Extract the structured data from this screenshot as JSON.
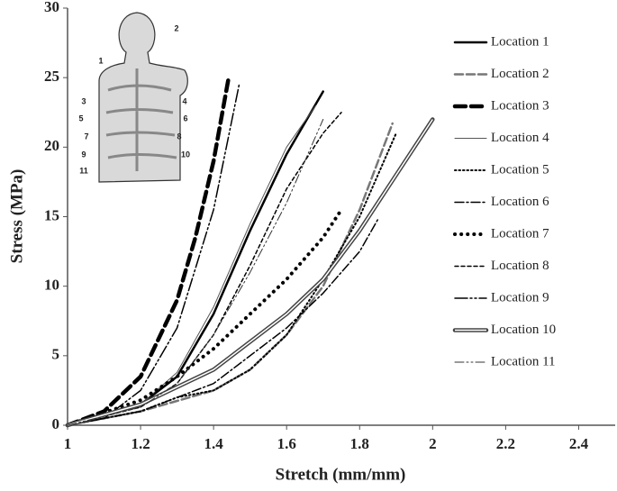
{
  "chart_data": {
    "type": "line",
    "x_label": "Stretch (mm/mm)",
    "y_label": "Stress (MPa)",
    "xlim": [
      1,
      2.5
    ],
    "ylim": [
      0,
      30
    ],
    "xticks": [
      1,
      1.2,
      1.4,
      1.6,
      1.8,
      2,
      2.2,
      2.4
    ],
    "yticks": [
      0,
      5,
      10,
      15,
      20,
      25,
      30
    ],
    "grid": false,
    "inset_labels": [
      "1",
      "2",
      "3",
      "4",
      "5",
      "6",
      "7",
      "8",
      "9",
      "10",
      "11"
    ],
    "series": [
      {
        "name": "Location 1",
        "color": "#000000",
        "width": 2.5,
        "dash": "none",
        "x": [
          1,
          1.2,
          1.3,
          1.4,
          1.5,
          1.6,
          1.7
        ],
        "values": [
          0,
          1.5,
          3.5,
          8,
          14,
          19.5,
          24
        ]
      },
      {
        "name": "Location 2",
        "color": "#777777",
        "width": 2.5,
        "dash": "9 4",
        "x": [
          1,
          1.2,
          1.4,
          1.5,
          1.6,
          1.7,
          1.8,
          1.89
        ],
        "values": [
          0,
          1,
          2.5,
          4,
          6.5,
          10,
          15.5,
          21.7
        ]
      },
      {
        "name": "Location 3",
        "color": "#000000",
        "width": 4.5,
        "dash": "12 6",
        "x": [
          1,
          1.1,
          1.2,
          1.3,
          1.35,
          1.4,
          1.44
        ],
        "values": [
          0,
          1,
          3.5,
          9,
          13.5,
          19,
          24.8
        ]
      },
      {
        "name": "Location 4",
        "color": "#555555",
        "width": 1,
        "dash": "none",
        "x": [
          1,
          1.2,
          1.3,
          1.4,
          1.5,
          1.6,
          1.68
        ],
        "values": [
          0,
          1.5,
          3.8,
          8.5,
          14.5,
          20,
          23
        ]
      },
      {
        "name": "Location 5",
        "color": "#000000",
        "width": 2,
        "dash": "1.5 3",
        "x": [
          1,
          1.2,
          1.3,
          1.4,
          1.5,
          1.6,
          1.7,
          1.8,
          1.9
        ],
        "values": [
          0,
          1,
          2,
          2.5,
          4,
          6.5,
          10.5,
          15,
          21
        ]
      },
      {
        "name": "Location 6",
        "color": "#000000",
        "width": 1.5,
        "dash": "10 3 2 3",
        "x": [
          1,
          1.2,
          1.4,
          1.6,
          1.7,
          1.8,
          1.85
        ],
        "values": [
          0,
          1,
          3,
          7,
          9.5,
          12.5,
          14.8
        ]
      },
      {
        "name": "Location 7",
        "color": "#000000",
        "width": 4,
        "dash": "0.1 7",
        "x": [
          1,
          1.2,
          1.3,
          1.4,
          1.5,
          1.6,
          1.7,
          1.75
        ],
        "values": [
          0,
          1.8,
          3.5,
          5.5,
          8,
          10.5,
          13.5,
          15.5
        ]
      },
      {
        "name": "Location 8",
        "color": "#000000",
        "width": 1.5,
        "dash": "4 3",
        "x": [
          1,
          1.2,
          1.3,
          1.4,
          1.5,
          1.6,
          1.7,
          1.75
        ],
        "values": [
          0,
          1.3,
          3,
          6.5,
          11.5,
          17,
          21,
          22.5
        ]
      },
      {
        "name": "Location 9",
        "color": "#000000",
        "width": 1.5,
        "dash": "14 3 2 3 2 3",
        "x": [
          1,
          1.1,
          1.2,
          1.3,
          1.4,
          1.47
        ],
        "values": [
          0,
          0.5,
          2.5,
          7,
          15.5,
          24.5
        ]
      },
      {
        "name": "Location 10",
        "color": "#444444",
        "width": 4.5,
        "dash": "none",
        "double": true,
        "x": [
          1,
          1.2,
          1.4,
          1.6,
          1.7,
          1.8,
          1.9,
          2
        ],
        "values": [
          0,
          1.5,
          4,
          8,
          10.5,
          14,
          18,
          22
        ]
      },
      {
        "name": "Location 11",
        "color": "#333333",
        "width": 1,
        "dash": "10 3 2 3 2 3",
        "x": [
          1,
          1.2,
          1.3,
          1.4,
          1.5,
          1.6,
          1.7
        ],
        "values": [
          0,
          1.3,
          3,
          6.5,
          11,
          16,
          22
        ]
      }
    ]
  }
}
